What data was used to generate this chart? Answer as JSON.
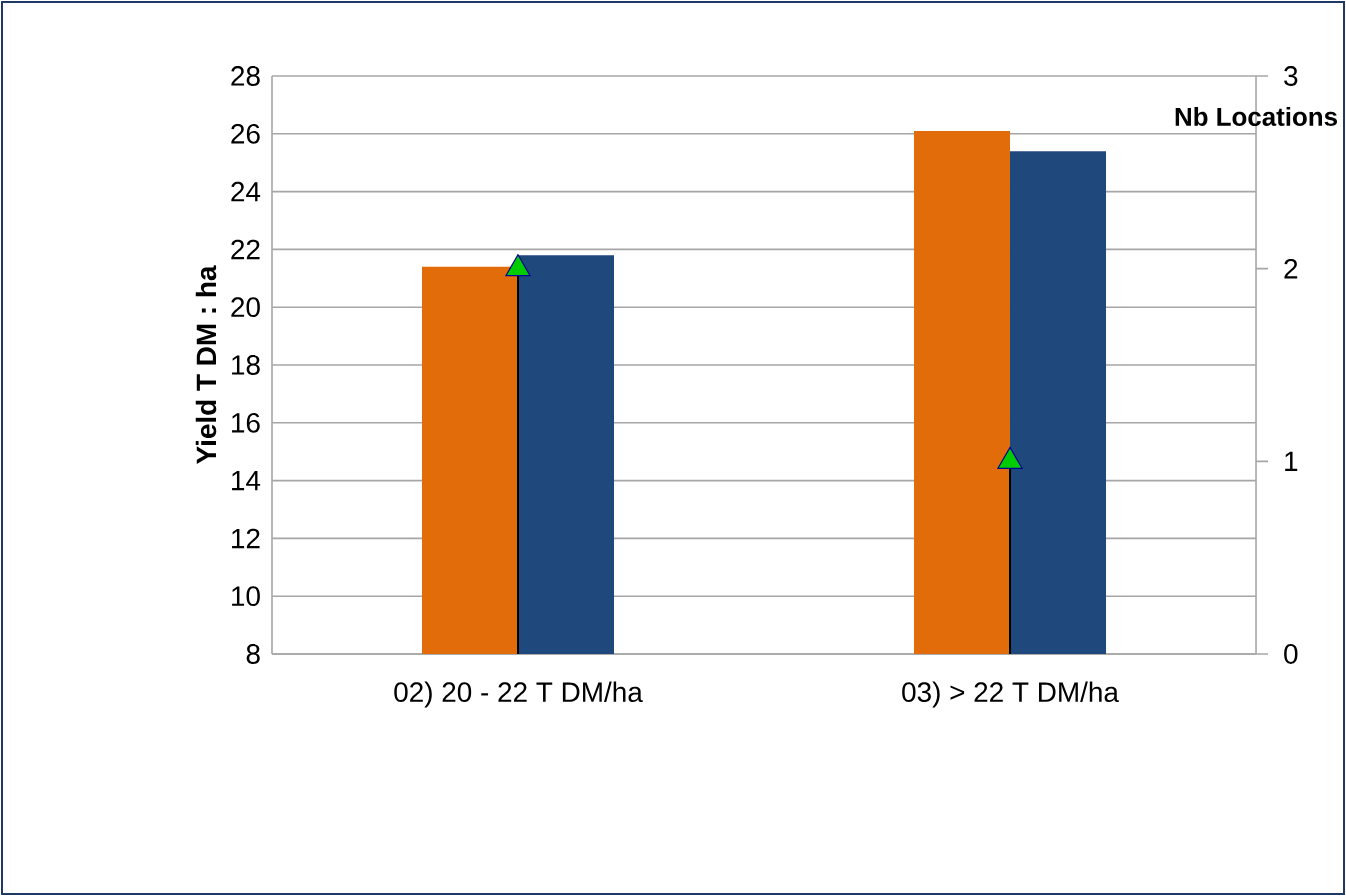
{
  "chart_data": {
    "type": "bar",
    "ylabel": "Yield T DM : ha",
    "y2label": "Nb Locations",
    "categories": [
      "02) 20 - 22 T DM/ha",
      "03) > 22 T DM/ha"
    ],
    "series": [
      {
        "color": "#e36c0a",
        "values": [
          21.4,
          26.1
        ]
      },
      {
        "color": "#1f497d",
        "values": [
          21.8,
          25.4
        ]
      },
      {
        "type": "lollipop",
        "axis": "y2",
        "color": "#00cc00",
        "marker": "triangle",
        "values": [
          2,
          1
        ]
      }
    ],
    "ylim": [
      8,
      28
    ],
    "yticks": [
      8,
      10,
      12,
      14,
      16,
      18,
      20,
      22,
      24,
      26,
      28
    ],
    "y2lim": [
      0,
      3
    ],
    "y2ticks": [
      0,
      1,
      2,
      3
    ],
    "grid": "y"
  }
}
